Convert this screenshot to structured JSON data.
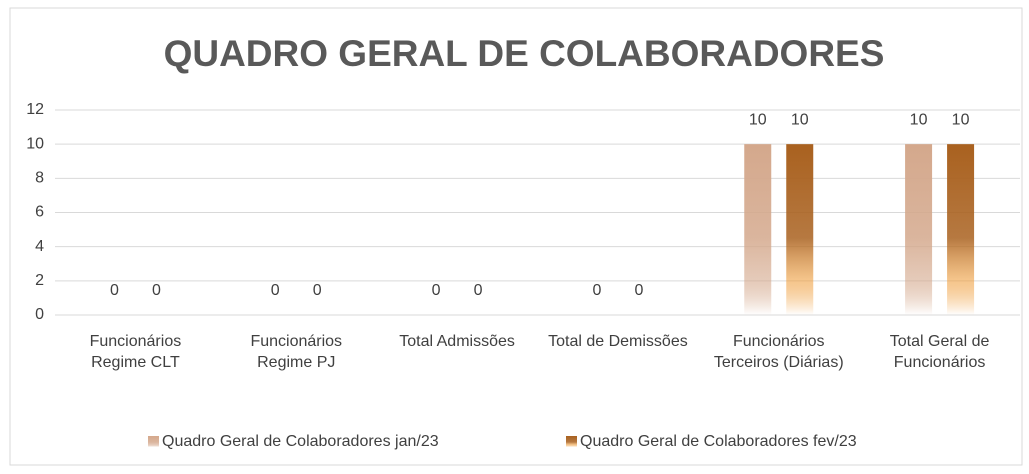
{
  "chart_data": {
    "type": "bar",
    "title": "QUADRO GERAL DE COLABORADORES",
    "categories": [
      "Funcionários Regime CLT",
      "Funcionários Regime PJ",
      "Total Admissões",
      "Total de Demissões",
      "Funcionários Terceiros (Diárias)",
      "Total Geral de Funcionários"
    ],
    "series": [
      {
        "name": "Quadro Geral de Colaboradores jan/23",
        "color": "#d4a88c",
        "values": [
          0,
          0,
          0,
          0,
          10,
          10
        ]
      },
      {
        "name": "Quadro Geral de Colaboradores fev/23",
        "color": "#a9611f",
        "values": [
          0,
          0,
          0,
          0,
          10,
          10
        ]
      }
    ],
    "ylim": [
      0,
      12
    ],
    "yticks": [
      0,
      2,
      4,
      6,
      8,
      10,
      12
    ],
    "grid": true,
    "legend": "bottom"
  }
}
